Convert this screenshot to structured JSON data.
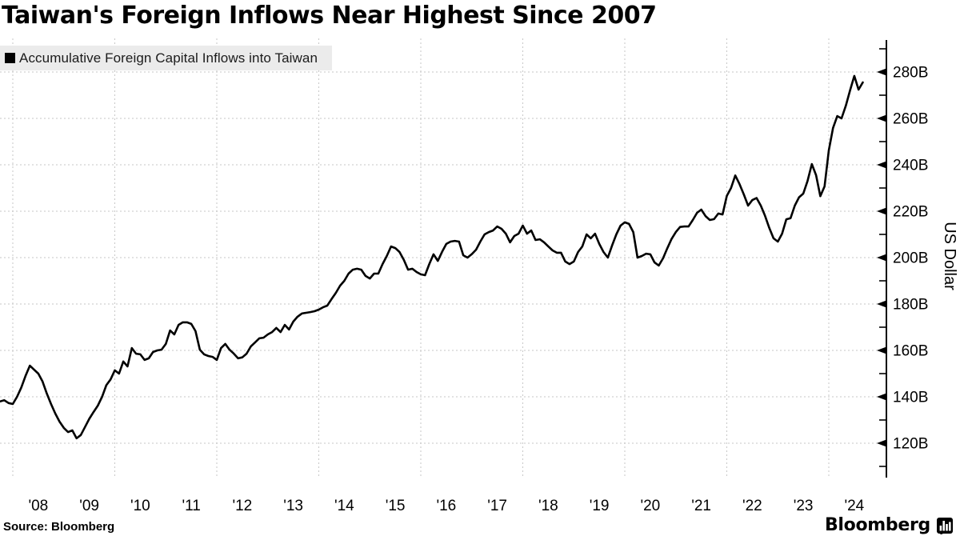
{
  "title": "Taiwan's Foreign Inflows Near Highest Since 2007",
  "legend": {
    "swatch": "black-square",
    "label": "Accumulative Foreign Capital Inflows into Taiwan"
  },
  "source": "Source: Bloomberg",
  "brand": {
    "wordmark": "Bloomberg",
    "icon": "bar-chart-logo-icon"
  },
  "colors": {
    "line": "#000000",
    "grid": "#c7c7c7",
    "legend_bg": "#ebebeb",
    "text": "#000000",
    "background": "#ffffff"
  },
  "chart_data": {
    "type": "line",
    "title": "Taiwan's Foreign Inflows Near Highest Since 2007",
    "ylabel": "US Dollar",
    "unit": "USD billions",
    "legend_position": "top-left",
    "grid": "dashed",
    "y_axis_side": "right",
    "ylim": [
      108,
      292
    ],
    "y_major_ticks": [
      120,
      140,
      160,
      180,
      200,
      220,
      240,
      260,
      280
    ],
    "y_tick_labels": [
      "120B",
      "140B",
      "160B",
      "180B",
      "200B",
      "220B",
      "240B",
      "260B",
      "280B"
    ],
    "y_minor_tick_step": 10,
    "x_tick_labels": [
      "'08",
      "'09",
      "'10",
      "'11",
      "'12",
      "'13",
      "'14",
      "'15",
      "'16",
      "'17",
      "'18",
      "'19",
      "'20",
      "'21",
      "'22",
      "'23",
      "'24"
    ],
    "x_gridline_years": [
      2008,
      2010,
      2012,
      2014,
      2016,
      2018,
      2020,
      2022,
      2024
    ],
    "series": [
      {
        "name": "Accumulative Foreign Capital Inflows into Taiwan",
        "start_month": "2007-10",
        "end_month": "2024-09",
        "frequency": "monthly",
        "values_billions_usd": [
          138.0,
          138.5,
          137.3,
          136.9,
          140.0,
          144.0,
          149.0,
          153.4,
          151.7,
          150.0,
          146.6,
          141.4,
          136.9,
          132.8,
          129.3,
          126.6,
          124.8,
          125.5,
          122.1,
          123.5,
          127.0,
          130.5,
          133.4,
          136.2,
          140.0,
          145.0,
          147.5,
          151.4,
          150.0,
          155.2,
          153.1,
          161.0,
          158.6,
          158.3,
          155.9,
          156.6,
          159.3,
          160.0,
          160.3,
          162.8,
          168.6,
          166.9,
          171.0,
          172.1,
          172.1,
          171.4,
          168.3,
          160.3,
          158.3,
          157.6,
          157.2,
          155.9,
          161.0,
          162.8,
          160.3,
          158.6,
          156.6,
          157.0,
          158.6,
          161.7,
          163.4,
          165.2,
          165.5,
          166.9,
          167.9,
          169.7,
          167.9,
          171.0,
          169.0,
          172.4,
          174.5,
          175.9,
          176.2,
          176.5,
          176.9,
          177.6,
          178.6,
          179.3,
          182.1,
          184.8,
          187.9,
          190.0,
          193.1,
          194.8,
          195.2,
          194.8,
          192.1,
          191.0,
          193.1,
          193.1,
          197.2,
          200.7,
          204.8,
          204.1,
          202.4,
          199.0,
          194.8,
          195.2,
          193.8,
          192.8,
          192.4,
          197.2,
          201.4,
          198.6,
          202.5,
          205.9,
          206.9,
          207.2,
          206.9,
          201.0,
          200.0,
          201.5,
          203.4,
          206.9,
          210.0,
          211.0,
          211.7,
          213.4,
          212.4,
          210.3,
          206.6,
          209.3,
          210.3,
          213.8,
          210.3,
          211.7,
          207.6,
          207.9,
          206.6,
          204.8,
          203.1,
          202.1,
          202.1,
          198.3,
          197.2,
          198.3,
          202.4,
          204.8,
          210.0,
          208.3,
          210.3,
          205.9,
          202.4,
          200.0,
          205.2,
          210.0,
          213.8,
          215.2,
          214.5,
          211.0,
          200.0,
          200.7,
          201.7,
          201.4,
          197.9,
          196.6,
          199.7,
          204.0,
          208.0,
          211.0,
          213.2,
          213.4,
          213.4,
          216.2,
          219.3,
          220.7,
          217.9,
          216.2,
          216.6,
          219.0,
          218.6,
          226.6,
          230.0,
          235.4,
          231.7,
          227.2,
          222.4,
          224.8,
          225.7,
          222.4,
          218.0,
          212.8,
          208.3,
          206.9,
          210.3,
          216.5,
          217.0,
          222.4,
          226.0,
          227.6,
          233.0,
          240.3,
          235.5,
          226.5,
          230.7,
          246.2,
          255.9,
          261.0,
          260.0,
          265.5,
          272.1,
          278.3,
          272.4,
          275.5
        ]
      }
    ]
  }
}
